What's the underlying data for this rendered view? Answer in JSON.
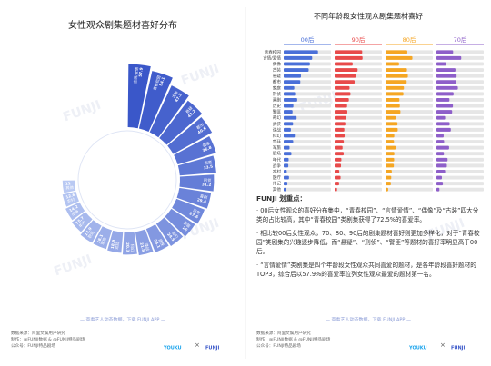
{
  "chart_data": [
    {
      "type": "radial-bar",
      "title": "女性观众剧集题材喜好分布",
      "categories": [
        "言情/爱情",
        "青春校园",
        "古装",
        "悬疑",
        "都市",
        "偶像",
        "家庭",
        "刑侦",
        "喜剧",
        "历史",
        "警匪",
        "奇幻",
        "武侠",
        "谍战",
        "科幻",
        "宫廷",
        "军旅",
        "职场",
        "年代",
        "战争",
        "农村",
        "其他"
      ],
      "values": [
        57.9,
        54.1,
        47.3,
        43.2,
        40.6,
        36.8,
        33.5,
        31.2,
        29.4,
        27.6,
        26.0,
        24.5,
        23.1,
        21.8,
        20.3,
        18.9,
        18.1,
        17.9,
        15.7,
        14.2,
        12.6,
        11.0
      ],
      "color_start": "#3a57c9",
      "color_end": "#b9c9f3"
    },
    {
      "type": "bar-panels",
      "title": "不同年龄段女性观众剧集题材喜好",
      "xlim": [
        0,
        100
      ],
      "track_color": "#e6e6e6",
      "categories": [
        "青春校园",
        "言情/爱情",
        "偶像",
        "古装",
        "悬疑",
        "都市",
        "家庭",
        "刑侦",
        "喜剧",
        "历史",
        "警匪",
        "奇幻",
        "武侠",
        "谍战",
        "科幻",
        "宫廷",
        "军旅",
        "职场",
        "年代",
        "战争",
        "农村",
        "医疗",
        "传记",
        "其他"
      ],
      "series": [
        {
          "name": "00后",
          "color": "#4a6fd8",
          "values": [
            72.5,
            60.2,
            55.4,
            52.8,
            36.5,
            35.1,
            22.4,
            24.3,
            28.6,
            20.5,
            18.7,
            27.3,
            19.8,
            15.2,
            23.6,
            20.1,
            12.4,
            16.3,
            10.5,
            9.8,
            6.5,
            11.2,
            7.8,
            4.2
          ]
        },
        {
          "name": "90后",
          "color": "#e84a4a",
          "values": [
            58.3,
            59.1,
            38.2,
            48.6,
            44.8,
            42.3,
            31.6,
            33.5,
            30.1,
            26.4,
            26.9,
            24.8,
            22.7,
            20.6,
            21.2,
            19.4,
            16.8,
            19.2,
            14.3,
            13.5,
            9.8,
            12.6,
            9.4,
            5.1
          ]
        },
        {
          "name": "80后",
          "color": "#f5a623",
          "values": [
            46.1,
            56.8,
            28.5,
            45.3,
            47.2,
            44.7,
            38.9,
            37.8,
            29.4,
            30.2,
            31.5,
            21.6,
            25.3,
            25.8,
            18.5,
            17.8,
            21.5,
            18.6,
            18.2,
            17.6,
            13.2,
            12.1,
            11.3,
            5.6
          ]
        },
        {
          "name": "70后",
          "color": "#8e5fc9",
          "values": [
            35.2,
            52.4,
            20.1,
            40.2,
            42.6,
            41.8,
            45.3,
            36.2,
            27.5,
            34.8,
            33.1,
            18.4,
            27.9,
            30.4,
            15.3,
            16.2,
            26.7,
            15.8,
            23.6,
            22.1,
            18.4,
            11.5,
            13.6,
            6.3
          ]
        }
      ]
    }
  ],
  "notes": {
    "title": "FUNJI 划重点：",
    "paragraphs": [
      "· 00后女性观众的喜好分布集中，“青春校园”、“言情爱情”、“偶像”及“古装”四大分类的占比较高，其中“青春校园”类剧集获得了72.5%的喜爱率。",
      "· 相比较00后女性观众，70、80、90后的剧集题材喜好则更加多样化，对于“青春校园”类剧集的兴趣逐步降低，而“悬疑”、“刑侦”、“警匪”等题材的喜好率明显高于00后。",
      "· “言情爱情”类剧集是四个年龄段女性观众共同喜爱的题材，是各年龄段喜好题材的TOP3，综合后以57.9%的喜爱率位列女性观众最爱的题材第一名。"
    ]
  },
  "footer": {
    "cta": "— 查看艺人动态数据，下载 FUNJI APP —",
    "lines": [
      "数据来源：阿里文娱用户研究",
      "制作：@FUNJI数据 & @FUNJI特品剧场",
      "公众号：FUNJI特品剧场"
    ],
    "logos": [
      "YOUKU",
      "×",
      "FUNJI"
    ]
  },
  "watermark": "FUNJI"
}
